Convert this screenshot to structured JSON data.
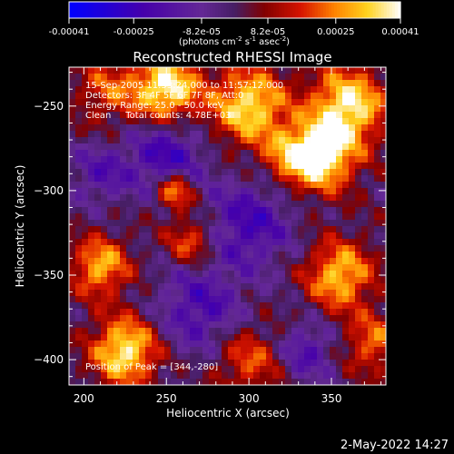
{
  "chart_data": {
    "type": "heatmap",
    "title": "Reconstructed RHESSI Image",
    "xlabel": "Heliocentric X (arcsec)",
    "ylabel": "Heliocentric Y (arcsec)",
    "xlim": [
      191,
      383
    ],
    "ylim": [
      -415,
      -227
    ],
    "x_ticks": [
      200,
      250,
      300,
      350
    ],
    "y_ticks": [
      -250,
      -300,
      -350,
      -400
    ],
    "colorbar": {
      "ticks": [
        "-0.00041",
        "-0.00025",
        "-8.2e-05",
        "8.2e-05",
        "0.00025",
        "0.00041"
      ],
      "tick_values": [
        -0.00041,
        -0.00025,
        -8.2e-05,
        8.2e-05,
        0.00025,
        0.00041
      ],
      "unit_prefix": "(photons cm",
      "unit_exp1": "-2",
      "unit_mid": " s",
      "unit_exp2": "-1",
      "unit_mid2": " asec",
      "unit_exp3": "-2",
      "unit_suffix": ")"
    },
    "annotations": [
      "15-Sep-2005 11:53:24.000 to 11:57:12.000",
      "Detectors: 3F 4F 5F 6F 7F 8F, Att:0",
      "Energy Range: 25.0 - 50.0 keV",
      "Clean     Total counts: 4.78E+03"
    ],
    "peak_label": "Position of Peak = [344,-280]",
    "sources": [
      {
        "x": 250,
        "y": -240,
        "amp": 1.0,
        "sigma": 14
      },
      {
        "x": 300,
        "y": -250,
        "amp": 0.9,
        "sigma": 16
      },
      {
        "x": 344,
        "y": -280,
        "amp": 1.0,
        "sigma": 14
      },
      {
        "x": 360,
        "y": -250,
        "amp": 0.95,
        "sigma": 16
      },
      {
        "x": 255,
        "y": -300,
        "amp": 0.8,
        "sigma": 8
      },
      {
        "x": 215,
        "y": -240,
        "amp": 0.45,
        "sigma": 14
      },
      {
        "x": 325,
        "y": -280,
        "amp": 0.5,
        "sigma": 12
      },
      {
        "x": 210,
        "y": -345,
        "amp": 0.75,
        "sigma": 12
      },
      {
        "x": 265,
        "y": -330,
        "amp": 0.55,
        "sigma": 10
      },
      {
        "x": 355,
        "y": -350,
        "amp": 0.8,
        "sigma": 14
      },
      {
        "x": 225,
        "y": -395,
        "amp": 0.95,
        "sigma": 14
      },
      {
        "x": 300,
        "y": -400,
        "amp": 0.5,
        "sigma": 14
      },
      {
        "x": 375,
        "y": -390,
        "amp": 0.55,
        "sigma": 12
      },
      {
        "x": 250,
        "y": -280,
        "amp": -0.6,
        "sigma": 16
      },
      {
        "x": 210,
        "y": -290,
        "amp": -0.4,
        "sigma": 12
      },
      {
        "x": 300,
        "y": -320,
        "amp": -0.55,
        "sigma": 18
      },
      {
        "x": 270,
        "y": -370,
        "amp": -0.5,
        "sigma": 18
      },
      {
        "x": 335,
        "y": -395,
        "amp": -0.45,
        "sigma": 12
      }
    ]
  },
  "footer": {
    "date": "2-May-2022 14:27"
  }
}
